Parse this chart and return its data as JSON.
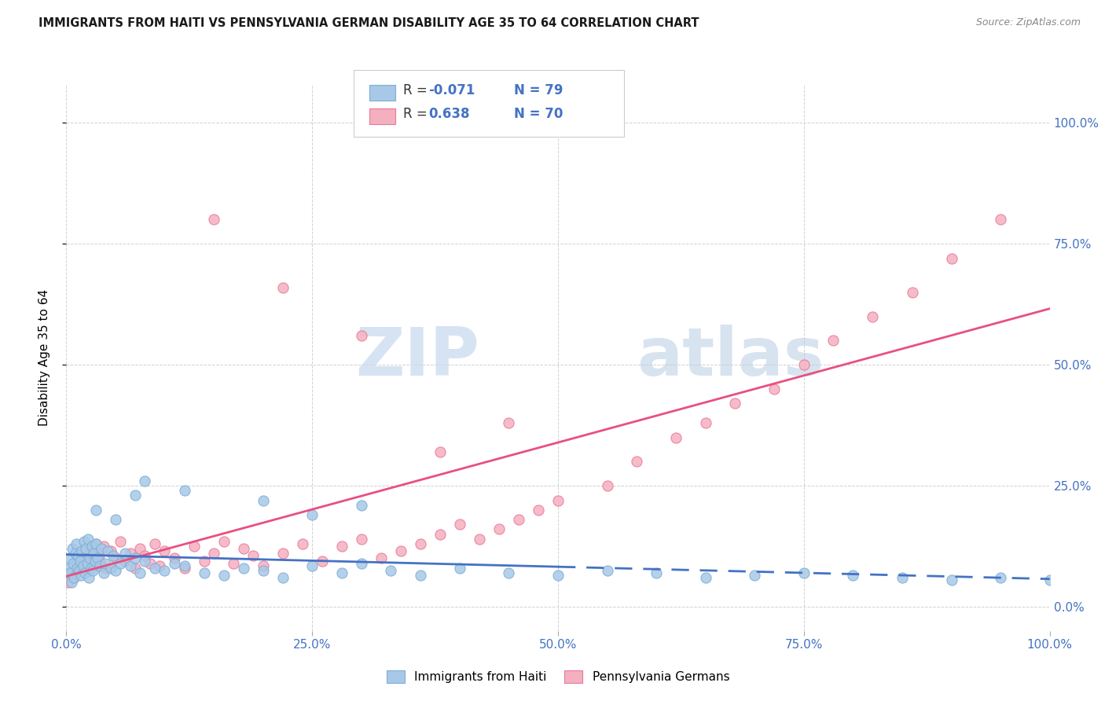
{
  "title": "IMMIGRANTS FROM HAITI VS PENNSYLVANIA GERMAN DISABILITY AGE 35 TO 64 CORRELATION CHART",
  "source": "Source: ZipAtlas.com",
  "ylabel": "Disability Age 35 to 64",
  "xlim": [
    0,
    100
  ],
  "ylim": [
    -5,
    108
  ],
  "haiti_color": "#a8c8e8",
  "haiti_edge": "#7aafd4",
  "haiti_line_color": "#4472c4",
  "penn_color": "#f5b0c0",
  "penn_edge": "#e87898",
  "penn_line_color": "#e85080",
  "watermark_color": "#cce0f5",
  "grid_color": "#cccccc",
  "title_color": "#1a1a1a",
  "axis_tick_color": "#4472c4",
  "haiti_x": [
    0.2,
    0.3,
    0.4,
    0.5,
    0.6,
    0.7,
    0.8,
    0.9,
    1.0,
    1.1,
    1.2,
    1.3,
    1.4,
    1.5,
    1.6,
    1.7,
    1.8,
    1.9,
    2.0,
    2.1,
    2.2,
    2.3,
    2.4,
    2.5,
    2.6,
    2.7,
    2.8,
    2.9,
    3.0,
    3.2,
    3.4,
    3.6,
    3.8,
    4.0,
    4.2,
    4.5,
    4.8,
    5.0,
    5.5,
    6.0,
    6.5,
    7.0,
    7.5,
    8.0,
    9.0,
    10.0,
    11.0,
    12.0,
    14.0,
    16.0,
    18.0,
    20.0,
    22.0,
    25.0,
    28.0,
    30.0,
    33.0,
    36.0,
    40.0,
    45.0,
    50.0,
    55.0,
    60.0,
    65.0,
    70.0,
    75.0,
    80.0,
    85.0,
    90.0,
    95.0,
    100.0,
    20.0,
    25.0,
    30.0,
    8.0,
    12.0,
    3.0,
    5.0,
    7.0
  ],
  "haiti_y": [
    8.0,
    10.0,
    7.0,
    5.0,
    12.0,
    9.0,
    6.0,
    11.0,
    13.0,
    8.0,
    10.5,
    7.5,
    9.5,
    6.5,
    11.5,
    8.5,
    13.5,
    7.0,
    12.0,
    9.0,
    14.0,
    6.0,
    10.0,
    8.0,
    12.5,
    7.5,
    11.0,
    9.5,
    13.0,
    10.0,
    8.5,
    12.0,
    7.0,
    9.0,
    11.5,
    8.0,
    10.5,
    7.5,
    9.0,
    11.0,
    8.5,
    10.0,
    7.0,
    9.5,
    8.0,
    7.5,
    9.0,
    8.5,
    7.0,
    6.5,
    8.0,
    7.5,
    6.0,
    8.5,
    7.0,
    9.0,
    7.5,
    6.5,
    8.0,
    7.0,
    6.5,
    7.5,
    7.0,
    6.0,
    6.5,
    7.0,
    6.5,
    6.0,
    5.5,
    6.0,
    5.5,
    22.0,
    19.0,
    21.0,
    26.0,
    24.0,
    20.0,
    18.0,
    23.0
  ],
  "penn_x": [
    0.2,
    0.5,
    0.8,
    1.0,
    1.3,
    1.5,
    1.8,
    2.0,
    2.3,
    2.5,
    2.8,
    3.0,
    3.3,
    3.5,
    3.8,
    4.0,
    4.5,
    5.0,
    5.5,
    6.0,
    6.5,
    7.0,
    7.5,
    8.0,
    8.5,
    9.0,
    9.5,
    10.0,
    11.0,
    12.0,
    13.0,
    14.0,
    15.0,
    16.0,
    17.0,
    18.0,
    19.0,
    20.0,
    22.0,
    24.0,
    26.0,
    28.0,
    30.0,
    32.0,
    34.0,
    36.0,
    38.0,
    40.0,
    42.0,
    44.0,
    46.0,
    48.0,
    50.0,
    55.0,
    58.0,
    62.0,
    65.0,
    68.0,
    72.0,
    75.0,
    78.0,
    82.0,
    86.0,
    90.0,
    95.0,
    30.0,
    15.0,
    22.0,
    45.0,
    38.0
  ],
  "penn_y": [
    5.0,
    7.0,
    6.0,
    9.0,
    8.0,
    10.0,
    7.5,
    12.0,
    9.5,
    11.0,
    8.5,
    13.0,
    10.5,
    9.0,
    12.5,
    8.0,
    11.5,
    10.0,
    13.5,
    9.5,
    11.0,
    8.0,
    12.0,
    10.5,
    9.0,
    13.0,
    8.5,
    11.5,
    10.0,
    8.0,
    12.5,
    9.5,
    11.0,
    13.5,
    9.0,
    12.0,
    10.5,
    8.5,
    11.0,
    13.0,
    9.5,
    12.5,
    14.0,
    10.0,
    11.5,
    13.0,
    15.0,
    17.0,
    14.0,
    16.0,
    18.0,
    20.0,
    22.0,
    25.0,
    30.0,
    35.0,
    38.0,
    42.0,
    45.0,
    50.0,
    55.0,
    60.0,
    65.0,
    72.0,
    80.0,
    56.0,
    80.0,
    66.0,
    38.0,
    32.0
  ]
}
